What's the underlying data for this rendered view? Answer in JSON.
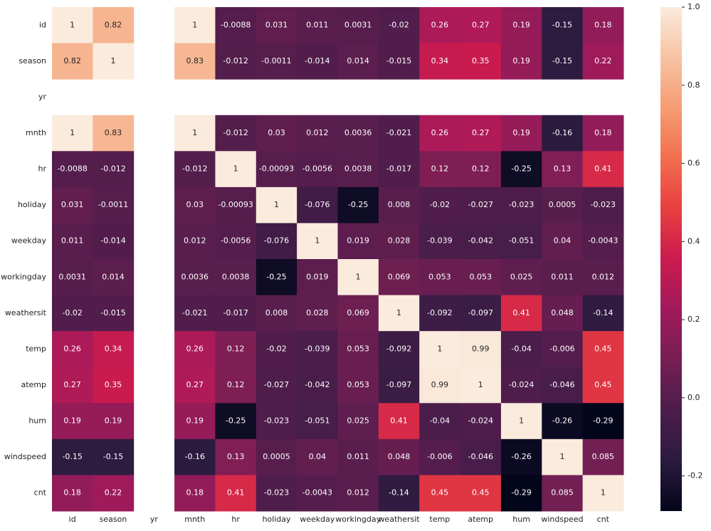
{
  "chart_data": {
    "type": "heatmap",
    "x_categories": [
      "id",
      "season",
      "yr",
      "mnth",
      "hr",
      "holiday",
      "weekday",
      "workingday",
      "weathersit",
      "temp",
      "atemp",
      "hum",
      "windspeed",
      "cnt"
    ],
    "y_categories": [
      "id",
      "season",
      "yr",
      "mnth",
      "hr",
      "holiday",
      "weekday",
      "workingday",
      "weathersit",
      "temp",
      "atemp",
      "hum",
      "windspeed",
      "cnt"
    ],
    "values": [
      [
        1,
        0.82,
        null,
        1,
        -0.0088,
        0.031,
        0.011,
        0.0031,
        -0.02,
        0.26,
        0.27,
        0.19,
        -0.15,
        0.18
      ],
      [
        0.82,
        1,
        null,
        0.83,
        -0.012,
        -0.0011,
        -0.014,
        0.014,
        -0.015,
        0.34,
        0.35,
        0.19,
        -0.15,
        0.22
      ],
      [
        null,
        null,
        null,
        null,
        null,
        null,
        null,
        null,
        null,
        null,
        null,
        null,
        null,
        null
      ],
      [
        1,
        0.83,
        null,
        1,
        -0.012,
        0.03,
        0.012,
        0.0036,
        -0.021,
        0.26,
        0.27,
        0.19,
        -0.16,
        0.18
      ],
      [
        -0.0088,
        -0.012,
        null,
        -0.012,
        1,
        -0.00093,
        -0.0056,
        0.0038,
        -0.017,
        0.12,
        0.12,
        -0.25,
        0.13,
        0.41
      ],
      [
        0.031,
        -0.0011,
        null,
        0.03,
        -0.00093,
        1,
        -0.076,
        -0.25,
        0.008,
        -0.02,
        -0.027,
        -0.023,
        0.0005,
        -0.023
      ],
      [
        0.011,
        -0.014,
        null,
        0.012,
        -0.0056,
        -0.076,
        1,
        0.019,
        0.028,
        -0.039,
        -0.042,
        -0.051,
        0.04,
        -0.0043
      ],
      [
        0.0031,
        0.014,
        null,
        0.0036,
        0.0038,
        -0.25,
        0.019,
        1,
        0.069,
        0.053,
        0.053,
        0.025,
        0.011,
        0.012
      ],
      [
        -0.02,
        -0.015,
        null,
        -0.021,
        -0.017,
        0.008,
        0.028,
        0.069,
        1,
        -0.092,
        -0.097,
        0.41,
        0.048,
        -0.14
      ],
      [
        0.26,
        0.34,
        null,
        0.26,
        0.12,
        -0.02,
        -0.039,
        0.053,
        -0.092,
        1,
        0.99,
        -0.04,
        -0.006,
        0.45
      ],
      [
        0.27,
        0.35,
        null,
        0.27,
        0.12,
        -0.027,
        -0.042,
        0.053,
        -0.097,
        0.99,
        1,
        -0.024,
        -0.046,
        0.45
      ],
      [
        0.19,
        0.19,
        null,
        0.19,
        -0.25,
        -0.023,
        -0.051,
        0.025,
        0.41,
        -0.04,
        -0.024,
        1,
        -0.26,
        -0.29
      ],
      [
        -0.15,
        -0.15,
        null,
        -0.16,
        0.13,
        0.0005,
        0.04,
        0.011,
        0.048,
        -0.006,
        -0.046,
        -0.26,
        1,
        0.085
      ],
      [
        0.18,
        0.22,
        null,
        0.18,
        0.41,
        -0.023,
        -0.0043,
        0.012,
        -0.14,
        0.45,
        0.45,
        -0.29,
        0.085,
        1
      ]
    ],
    "colormap": "rocket",
    "zlim": [
      -0.29,
      1
    ],
    "zticks": [
      -0.2,
      {
        "value": 0,
        "label": "0.0"
      },
      0.2,
      0.4,
      0.6,
      0.8,
      {
        "value": 1,
        "label": "1.0"
      }
    ]
  }
}
